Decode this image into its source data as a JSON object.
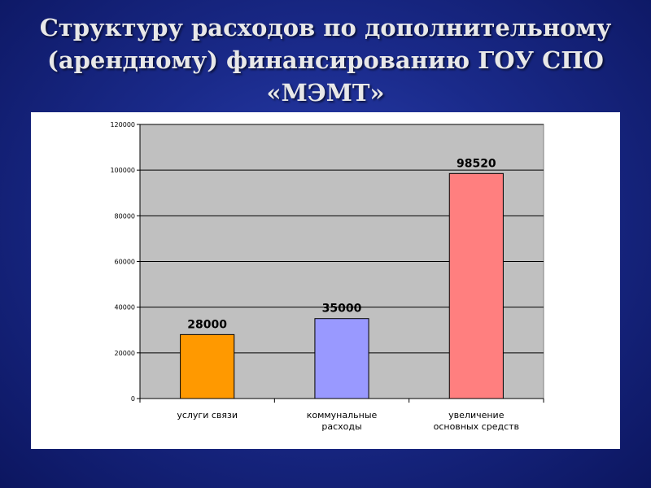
{
  "slide": {
    "title_lines": [
      "Структуру расходов по дополнительному",
      "(арендному) финансированию ГОУ СПО",
      "«МЭМТ»"
    ]
  },
  "chart_data": {
    "type": "bar",
    "categories": [
      [
        "услуги связи"
      ],
      [
        "коммунальные",
        "расходы"
      ],
      [
        "увеличение",
        "основных средств"
      ]
    ],
    "values": [
      28000,
      35000,
      98520
    ],
    "data_labels": [
      "28000",
      "35000",
      "98520"
    ],
    "y_ticks": [
      0,
      20000,
      40000,
      60000,
      80000,
      100000,
      120000
    ],
    "ylim": [
      0,
      120000
    ],
    "grid": true,
    "legend": "none",
    "colors": {
      "bars": [
        "#ff9900",
        "#9999ff",
        "#ff7f7f"
      ],
      "plot_background": "#c0c0c0",
      "grid": "#000000"
    }
  }
}
